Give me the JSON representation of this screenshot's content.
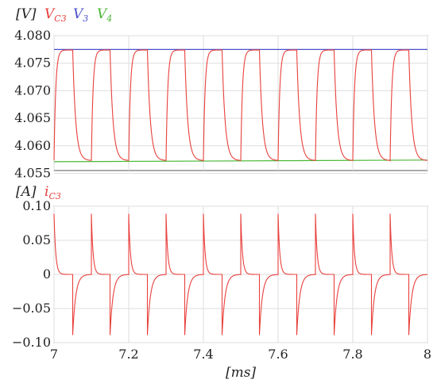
{
  "chart_data": [
    {
      "type": "line",
      "unit_label": "[V]",
      "xlim": [
        7,
        8
      ],
      "ylim": [
        4.0555,
        4.08
      ],
      "y_ticks": [
        "4.080",
        "4.075",
        "4.070",
        "4.065",
        "4.060",
        "4.055"
      ],
      "grid": true,
      "legend_placement": "top-left",
      "waveform": {
        "period": 0.1,
        "phase_start": 7.05,
        "high": 4.0774,
        "low": 4.0573,
        "tau_fall": 0.008,
        "tau_rise": 0.0045
      },
      "series": [
        {
          "name": "V",
          "name_sub": "C3",
          "color": "#e8403c",
          "kind": "square_rc",
          "values_range": [
            4.0573,
            4.0774
          ]
        },
        {
          "name": "V",
          "name_sub": "3",
          "color": "#4a4fc9",
          "kind": "constant",
          "value": 4.0775
        },
        {
          "name": "V",
          "name_sub": "4",
          "color": "#49b834",
          "kind": "constant_ramp",
          "x": [
            7.0,
            8.0
          ],
          "values": [
            4.0571,
            4.0574
          ]
        }
      ]
    },
    {
      "type": "line",
      "unit_label": "[A]",
      "xlim": [
        7,
        8
      ],
      "ylim": [
        -0.1,
        0.1
      ],
      "y_ticks": [
        "0.10",
        "0.05",
        "0",
        "−0.05",
        "−0.10"
      ],
      "x_ticks": [
        "7",
        "7.2",
        "7.4",
        "7.6",
        "7.8",
        "8"
      ],
      "xlabel": "[ms]",
      "grid": true,
      "legend_placement": "top-left",
      "waveform": {
        "period": 0.1,
        "phase_start": 7.05,
        "peak": 0.089,
        "tau_fall": 0.008,
        "tau_rise": 0.0045
      },
      "series": [
        {
          "name": "i",
          "name_sub": "C3",
          "color": "#e8403c",
          "kind": "pulse_rc",
          "values_range": [
            -0.089,
            0.089
          ]
        }
      ]
    }
  ]
}
